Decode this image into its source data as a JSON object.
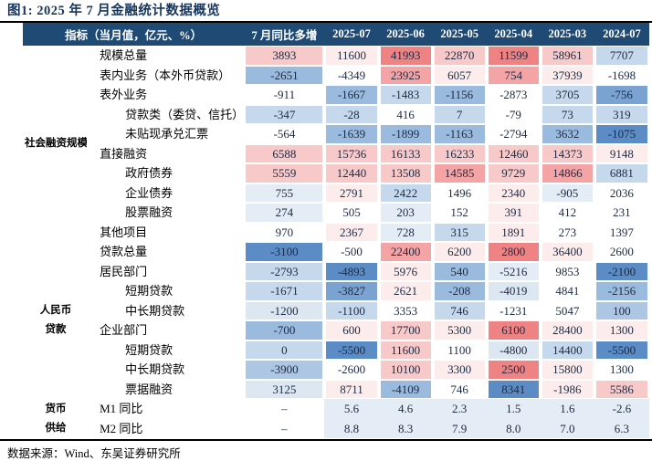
{
  "title": "图1:  2025 年 7 月金融统计数据概览",
  "footer": {
    "source": "数据来源：Wind、东吴证券研究所"
  },
  "palette": {
    "W": "#ffffff",
    "R0": "#fdecec",
    "R1": "#f8c9c9",
    "R2": "#f4a4a4",
    "R3": "#ef8383",
    "B0": "#e4ecf6",
    "B05": "#dde7f2",
    "B1": "#c6d8ec",
    "B15": "#adc6e4",
    "B2": "#9abade",
    "B25": "#7ba3d2",
    "B3": "#5b8cc6",
    "header_bg": "#1f4a74",
    "header_text": "#ffffff",
    "title_color": "#17365d",
    "number_text": "#1c2a42"
  },
  "table": {
    "indicator_header": "指标（当月值，亿元、%）",
    "columns": [
      "7 月同比多增",
      "2025-07",
      "2025-06",
      "2025-05",
      "2025-04",
      "2025-03",
      "2024-07"
    ],
    "groups": [
      {
        "label_lines": [
          "社会融资规模"
        ],
        "rows": [
          {
            "label": "规模总量",
            "indent": 1,
            "values": [
              "3893",
              "11600",
              "41993",
              "22870",
              "11599",
              "58961",
              "7707"
            ],
            "colors": [
              "R1",
              "R0",
              "R3",
              "R1",
              "R3",
              "R1",
              "B1"
            ]
          },
          {
            "label": "表内业务（本外币贷款）",
            "indent": 1,
            "values": [
              "-2651",
              "-4349",
              "23925",
              "6057",
              "754",
              "37939",
              "-1698"
            ],
            "colors": [
              "B2",
              "W",
              "R2",
              "R0",
              "R2",
              "R0",
              "W"
            ]
          },
          {
            "label": "表外业务",
            "indent": 1,
            "values": [
              "-911",
              "-1667",
              "-1483",
              "-1156",
              "-2873",
              "3705",
              "-756"
            ],
            "colors": [
              "W",
              "B2",
              "B1",
              "B2",
              "W",
              "B1",
              "B25"
            ]
          },
          {
            "label": "贷款类（委贷、信托）",
            "indent": 2,
            "values": [
              "-347",
              "-28",
              "416",
              "7",
              "-79",
              "73",
              "319"
            ],
            "colors": [
              "B1",
              "B1",
              "W",
              "B1",
              "W",
              "B1",
              "B1"
            ]
          },
          {
            "label": "未贴现承兑汇票",
            "indent": 2,
            "values": [
              "-564",
              "-1639",
              "-1899",
              "-1163",
              "-2794",
              "3632",
              "-1075"
            ],
            "colors": [
              "W",
              "B2",
              "B2",
              "B2",
              "W",
              "B2",
              "B3"
            ]
          },
          {
            "label": "直接融资",
            "indent": 1,
            "values": [
              "6588",
              "15736",
              "16133",
              "16233",
              "12460",
              "14373",
              "9148"
            ],
            "colors": [
              "R1",
              "R1",
              "R1",
              "R1",
              "R1",
              "R1",
              "R0"
            ]
          },
          {
            "label": "政府债券",
            "indent": 2,
            "values": [
              "5559",
              "12440",
              "13508",
              "14585",
              "9729",
              "14866",
              "6881"
            ],
            "colors": [
              "R1",
              "R1",
              "R1",
              "R2",
              "R1",
              "R2",
              "B1"
            ]
          },
          {
            "label": "企业债券",
            "indent": 2,
            "values": [
              "755",
              "2791",
              "2422",
              "1496",
              "2340",
              "-905",
              "2036"
            ],
            "colors": [
              "B0",
              "R0",
              "B1",
              "W",
              "R0",
              "B0",
              "W"
            ]
          },
          {
            "label": "股票融资",
            "indent": 2,
            "values": [
              "274",
              "505",
              "203",
              "152",
              "391",
              "412",
              "231"
            ],
            "colors": [
              "B0",
              "W",
              "B0",
              "W",
              "R0",
              "W",
              "W"
            ]
          },
          {
            "label": "其他项目",
            "indent": 1,
            "values": [
              "970",
              "2367",
              "728",
              "315",
              "1891",
              "273",
              "1397"
            ],
            "colors": [
              "W",
              "R0",
              "B0",
              "B1",
              "R0",
              "W",
              "W"
            ]
          }
        ]
      },
      {
        "label_lines": [
          "人民币",
          "贷款"
        ],
        "rows": [
          {
            "label": "贷款总量",
            "indent": 1,
            "values": [
              "-3100",
              "-500",
              "22400",
              "6200",
              "2800",
              "36400",
              "2600"
            ],
            "colors": [
              "B3",
              "W",
              "R2",
              "R0",
              "R3",
              "R0",
              "W"
            ]
          },
          {
            "label": "居民部门",
            "indent": 1,
            "values": [
              "-2793",
              "-4893",
              "5976",
              "540",
              "-5216",
              "9853",
              "-2100"
            ],
            "colors": [
              "B1",
              "B3",
              "R0",
              "B2",
              "B0",
              "W",
              "B3"
            ]
          },
          {
            "label": "短期贷款",
            "indent": 2,
            "values": [
              "-1671",
              "-3827",
              "2621",
              "-208",
              "-4019",
              "4841",
              "-2156"
            ],
            "colors": [
              "B1",
              "B25",
              "R0",
              "B2",
              "B05",
              "W",
              "B2"
            ]
          },
          {
            "label": "中长期贷款",
            "indent": 2,
            "values": [
              "-1200",
              "-1100",
              "3353",
              "746",
              "-1231",
              "5047",
              "100"
            ],
            "colors": [
              "B05",
              "B1",
              "W",
              "B1",
              "W",
              "W",
              "B15"
            ]
          },
          {
            "label": "企业部门",
            "indent": 1,
            "values": [
              "-700",
              "600",
              "17700",
              "5300",
              "6100",
              "28400",
              "1300"
            ],
            "colors": [
              "B2",
              "R0",
              "R1",
              "R0",
              "R3",
              "R0",
              "R0"
            ]
          },
          {
            "label": "短期贷款",
            "indent": 2,
            "values": [
              "0",
              "-5500",
              "11600",
              "1100",
              "-4800",
              "14400",
              "-5500"
            ],
            "colors": [
              "B1",
              "B3",
              "R1",
              "W",
              "B05",
              "B1",
              "B3"
            ]
          },
          {
            "label": "中长期贷款",
            "indent": 2,
            "values": [
              "-3900",
              "-2600",
              "10100",
              "3300",
              "2500",
              "15800",
              "1300"
            ],
            "colors": [
              "B15",
              "W",
              "R1",
              "R0",
              "R3",
              "R0",
              "W"
            ]
          },
          {
            "label": "票据融资",
            "indent": 2,
            "values": [
              "3125",
              "8711",
              "-4109",
              "746",
              "8341",
              "-1986",
              "5586"
            ],
            "colors": [
              "B05",
              "R0",
              "B2",
              "W",
              "B3",
              "R0",
              "R1"
            ]
          }
        ]
      },
      {
        "label_lines": [
          "货币",
          "供给"
        ],
        "rows": [
          {
            "label": "M1 同比",
            "indent": 1,
            "band": true,
            "values": [
              "–",
              "5.6",
              "4.6",
              "2.3",
              "1.5",
              "1.6",
              "-2.6"
            ],
            "colors": [
              "W",
              "B0",
              "B0",
              "B0",
              "B0",
              "B0",
              "B0"
            ]
          },
          {
            "label": "M2 同比",
            "indent": 1,
            "band": true,
            "values": [
              "–",
              "8.8",
              "8.3",
              "7.9",
              "8.0",
              "7.0",
              "6.3"
            ],
            "colors": [
              "W",
              "B0",
              "B0",
              "B0",
              "B0",
              "B0",
              "B0"
            ]
          }
        ]
      }
    ]
  }
}
